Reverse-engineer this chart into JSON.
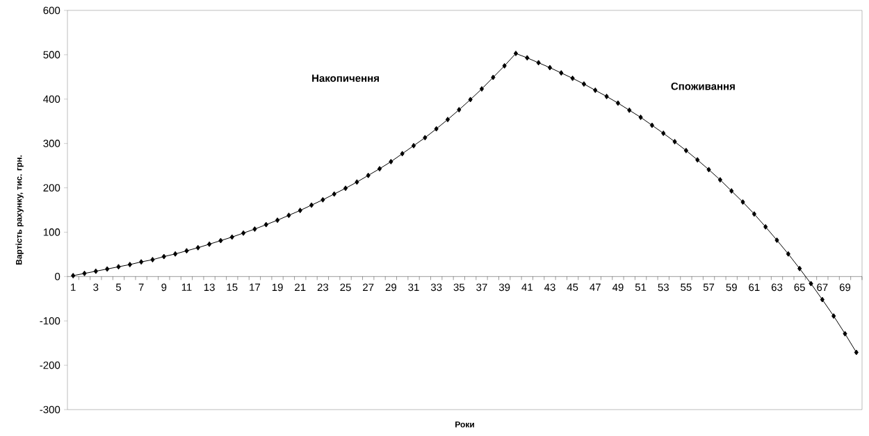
{
  "chart_data": {
    "type": "line",
    "xlabel": "Роки",
    "ylabel": "Вартість рахунку, тис. грн.",
    "categories": [
      "1",
      null,
      "3",
      null,
      "5",
      null,
      "7",
      null,
      "9",
      null,
      "11",
      null,
      "13",
      null,
      "15",
      null,
      "17",
      null,
      "19",
      null,
      "21",
      null,
      "23",
      null,
      "25",
      null,
      "27",
      null,
      "29",
      null,
      "31",
      null,
      "33",
      null,
      "35",
      null,
      "37",
      null,
      "39",
      null,
      "41",
      null,
      "43",
      null,
      "45",
      null,
      "47",
      null,
      "49",
      null,
      "51",
      null,
      "53",
      null,
      "55",
      null,
      "57",
      null,
      "59",
      null,
      "61",
      null,
      "63",
      null,
      "65",
      null,
      "67",
      null,
      "69",
      null
    ],
    "values": [
      2,
      7,
      12,
      17,
      22,
      27,
      33,
      38,
      45,
      51,
      58,
      65,
      73,
      81,
      89,
      98,
      107,
      117,
      127,
      138,
      149,
      161,
      173,
      186,
      199,
      213,
      228,
      243,
      259,
      277,
      295,
      313,
      333,
      354,
      376,
      399,
      423,
      449,
      475,
      503,
      493,
      482,
      471,
      459,
      447,
      434,
      420,
      406,
      391,
      375,
      359,
      341,
      323,
      304,
      284,
      263,
      241,
      218,
      193,
      168,
      141,
      112,
      82,
      51,
      18,
      -16,
      -52,
      -89,
      -129,
      -171
    ],
    "color": "#000000",
    "marker": "diamond",
    "line_style": "solid",
    "ylim": [
      -300,
      600
    ],
    "yticks": [
      -300,
      -200,
      -100,
      0,
      100,
      200,
      300,
      400,
      500,
      600
    ],
    "annotations": [
      "Накопичення",
      "Споживання"
    ]
  }
}
